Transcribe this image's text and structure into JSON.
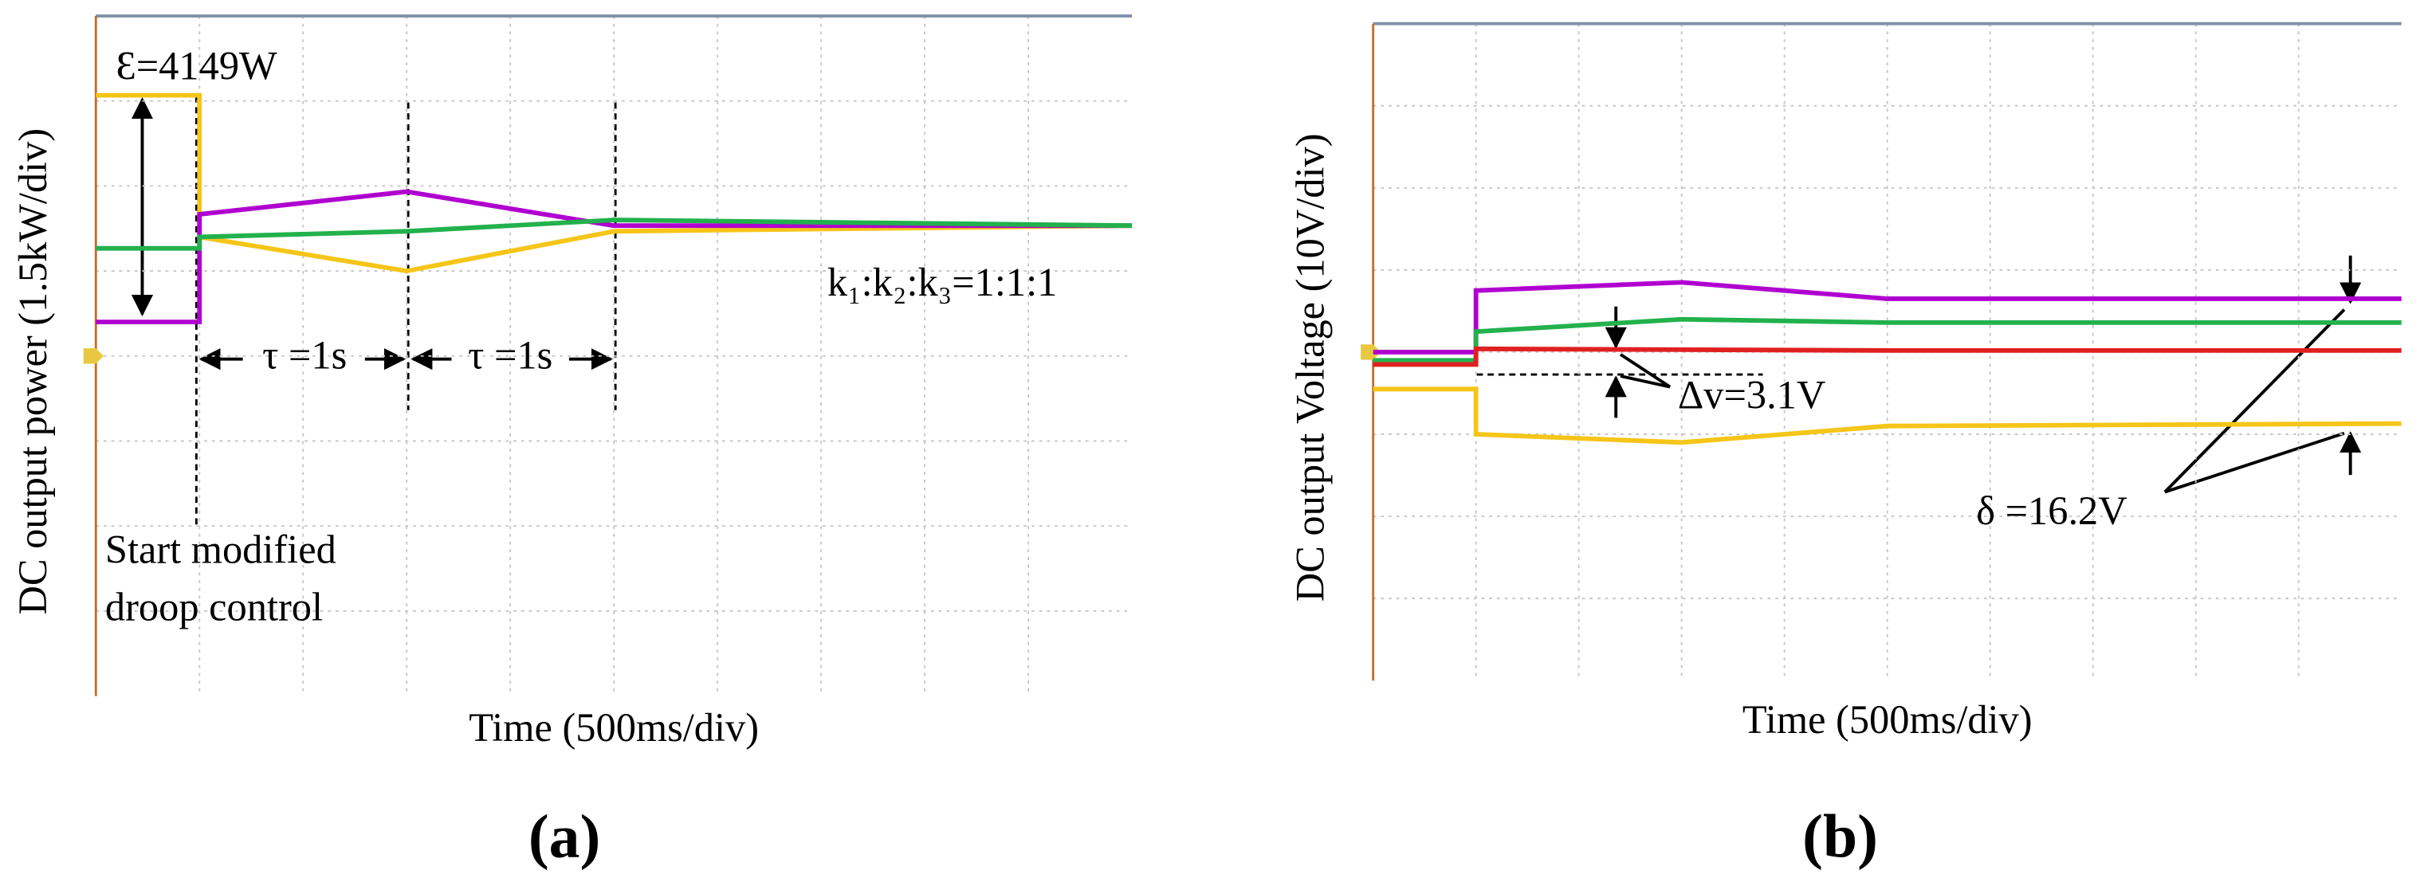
{
  "chart_data": [
    {
      "type": "line",
      "panel_label": "(a)",
      "x_label": "Time (500ms/div)",
      "y_label": "DC output power (1.5kW/div)",
      "annotations": [
        "Ɛ=4149W",
        "k₁:k₂:k₃=1:1:1",
        "τ =1s",
        "τ =1s",
        "Start modified",
        "droop control"
      ],
      "xlim": [
        0,
        5000
      ],
      "ylim": [
        -6,
        6
      ],
      "x": [
        0,
        500,
        500,
        1500,
        2500,
        5000
      ],
      "series": [
        {
          "color": "#f5c518",
          "values": [
            4.6,
            4.6,
            2.1,
            1.5,
            2.2,
            2.3
          ]
        },
        {
          "color": "#b000d0",
          "values": [
            0.6,
            0.6,
            2.5,
            2.9,
            2.3,
            2.3
          ]
        },
        {
          "color": "#22b14c",
          "values": [
            1.9,
            1.9,
            2.1,
            2.2,
            2.4,
            2.3
          ]
        }
      ]
    },
    {
      "type": "line",
      "panel_label": "(b)",
      "x_label": "Time (500ms/div)",
      "y_label": "DC output Voltage (10V/div)",
      "annotations": [
        "Δv=3.1V",
        "δ =16.2V"
      ],
      "xlim": [
        0,
        5000
      ],
      "ylim": [
        -40,
        40
      ],
      "x": [
        0,
        500,
        500,
        1500,
        2500,
        5000
      ],
      "series": [
        {
          "color": "#b000d0",
          "values": [
            0,
            0,
            7.5,
            8.5,
            6.5,
            6.5
          ]
        },
        {
          "color": "#22b14c",
          "values": [
            -1,
            -1,
            2.5,
            4,
            3.6,
            3.6
          ]
        },
        {
          "color": "#e02020",
          "values": [
            -1.5,
            -1.5,
            0.4,
            0.3,
            0.2,
            0.2
          ]
        },
        {
          "color": "#f5c518",
          "values": [
            -4.5,
            -4.5,
            -10,
            -11,
            -9,
            -8.7
          ]
        }
      ]
    }
  ]
}
